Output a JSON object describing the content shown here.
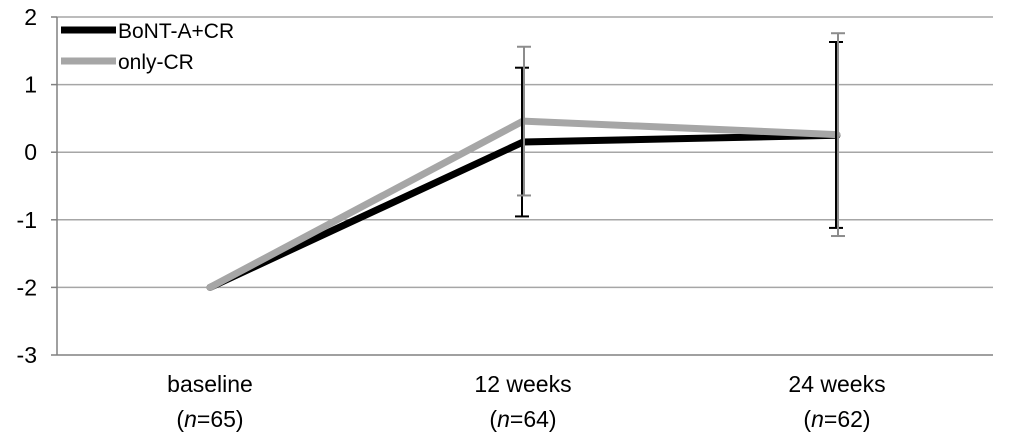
{
  "chart_data": {
    "type": "line",
    "title": "",
    "xlabel": "",
    "ylabel": "",
    "ylim": [
      -3,
      2
    ],
    "yticks": [
      "-3",
      "-2",
      "-1",
      "0",
      "1",
      "2"
    ],
    "grid": "horizontal",
    "legend_position": "top-left",
    "categories": [
      {
        "name": "baseline",
        "n_prefix": "(",
        "n_var": "n",
        "n_value": "=65)"
      },
      {
        "name": "12 weeks",
        "n_prefix": "(",
        "n_var": "n",
        "n_value": "=64)"
      },
      {
        "name": "24 weeks",
        "n_prefix": "(",
        "n_var": "n",
        "n_value": "=62)"
      }
    ],
    "series": [
      {
        "name": "BoNT-A+CR",
        "color": "#000000",
        "values": [
          -2.0,
          0.15,
          0.25
        ],
        "error_low": [
          null,
          -0.95,
          -1.12
        ],
        "error_high": [
          null,
          1.25,
          1.63
        ]
      },
      {
        "name": "only-CR",
        "color": "#a6a6a6",
        "values": [
          -2.0,
          0.46,
          0.26
        ],
        "error_low": [
          null,
          -0.64,
          -1.24
        ],
        "error_high": [
          null,
          1.56,
          1.76
        ]
      }
    ]
  }
}
